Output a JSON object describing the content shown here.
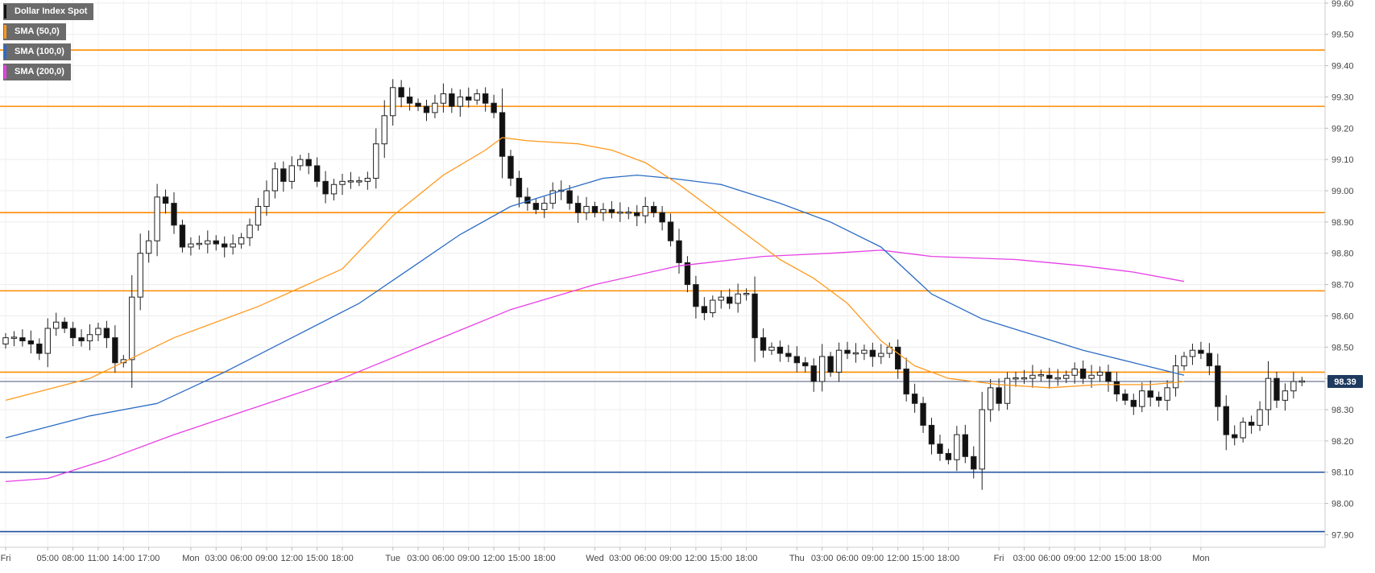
{
  "legend": [
    {
      "label": "Dollar Index Spot",
      "color": "#111111"
    },
    {
      "label": "SMA (50,0)",
      "color": "#ff9a1f"
    },
    {
      "label": "SMA (100,0)",
      "color": "#2b6cc4"
    },
    {
      "label": "SMA (200,0)",
      "color": "#e63fe6"
    }
  ],
  "price_badge": {
    "value": "98.39",
    "color": "#1f3a5f"
  },
  "chart_data": {
    "type": "candlestick",
    "title": "Dollar Index Spot",
    "ylim": [
      97.86,
      99.61
    ],
    "y_ticks": [
      "99.60",
      "99.50",
      "99.40",
      "99.30",
      "99.20",
      "99.10",
      "99.00",
      "98.90",
      "98.80",
      "98.70",
      "98.60",
      "98.50",
      "98.40",
      "98.30",
      "98.20",
      "98.10",
      "98.00",
      "97.90"
    ],
    "x_ticks": [
      {
        "label": "Fri",
        "i": 0
      },
      {
        "label": "05:00",
        "i": 5
      },
      {
        "label": "08:00",
        "i": 8
      },
      {
        "label": "11:00",
        "i": 11
      },
      {
        "label": "14:00",
        "i": 14
      },
      {
        "label": "17:00",
        "i": 17
      },
      {
        "label": "Mon",
        "i": 22
      },
      {
        "label": "03:00",
        "i": 25
      },
      {
        "label": "06:00",
        "i": 28
      },
      {
        "label": "09:00",
        "i": 31
      },
      {
        "label": "12:00",
        "i": 34
      },
      {
        "label": "15:00",
        "i": 37
      },
      {
        "label": "18:00",
        "i": 40
      },
      {
        "label": "Tue",
        "i": 46
      },
      {
        "label": "03:00",
        "i": 49
      },
      {
        "label": "06:00",
        "i": 52
      },
      {
        "label": "09:00",
        "i": 55
      },
      {
        "label": "12:00",
        "i": 58
      },
      {
        "label": "15:00",
        "i": 61
      },
      {
        "label": "18:00",
        "i": 64
      },
      {
        "label": "Wed",
        "i": 70
      },
      {
        "label": "03:00",
        "i": 73
      },
      {
        "label": "06:00",
        "i": 76
      },
      {
        "label": "09:00",
        "i": 79
      },
      {
        "label": "12:00",
        "i": 82
      },
      {
        "label": "15:00",
        "i": 85
      },
      {
        "label": "18:00",
        "i": 88
      },
      {
        "label": "Thu",
        "i": 94
      },
      {
        "label": "03:00",
        "i": 97
      },
      {
        "label": "06:00",
        "i": 100
      },
      {
        "label": "09:00",
        "i": 103
      },
      {
        "label": "12:00",
        "i": 106
      },
      {
        "label": "15:00",
        "i": 109
      },
      {
        "label": "18:00",
        "i": 112
      },
      {
        "label": "Fri",
        "i": 118
      },
      {
        "label": "03:00",
        "i": 121
      },
      {
        "label": "06:00",
        "i": 124
      },
      {
        "label": "09:00",
        "i": 127
      },
      {
        "label": "12:00",
        "i": 130
      },
      {
        "label": "15:00",
        "i": 133
      },
      {
        "label": "18:00",
        "i": 136
      },
      {
        "label": "Mon",
        "i": 142
      }
    ],
    "resistance_levels": [
      99.45,
      99.27,
      98.93,
      98.68,
      98.42
    ],
    "support_levels": [
      98.1,
      97.91
    ],
    "current_price": 98.39,
    "candles_close": [
      98.53,
      98.53,
      98.52,
      98.51,
      98.48,
      98.56,
      98.58,
      98.56,
      98.53,
      98.52,
      98.54,
      98.56,
      98.53,
      98.45,
      98.46,
      98.66,
      98.8,
      98.84,
      98.98,
      98.96,
      98.89,
      98.82,
      98.83,
      98.83,
      98.84,
      98.83,
      98.82,
      98.83,
      98.85,
      98.89,
      98.95,
      99.0,
      99.07,
      99.03,
      99.08,
      99.1,
      99.08,
      99.03,
      98.99,
      99.02,
      99.03,
      99.03,
      99.03,
      99.04,
      99.15,
      99.24,
      99.33,
      99.3,
      99.28,
      99.27,
      99.25,
      99.28,
      99.31,
      99.27,
      99.3,
      99.29,
      99.31,
      99.28,
      99.25,
      99.11,
      99.04,
      98.98,
      98.96,
      98.94,
      98.96,
      99.0,
      99.0,
      98.96,
      98.93,
      98.95,
      98.93,
      98.94,
      98.93,
      98.93,
      98.93,
      98.92,
      98.95,
      98.93,
      98.9,
      98.84,
      98.77,
      98.7,
      98.63,
      98.61,
      98.65,
      98.66,
      98.64,
      98.67,
      98.67,
      98.53,
      98.49,
      98.5,
      98.48,
      98.47,
      98.45,
      98.44,
      98.39,
      98.47,
      98.42,
      98.49,
      98.48,
      98.48,
      98.49,
      98.47,
      98.48,
      98.5,
      98.43,
      98.35,
      98.32,
      98.25,
      98.19,
      98.16,
      98.14,
      98.22,
      98.15,
      98.11,
      98.3,
      98.37,
      98.32,
      98.4,
      98.4,
      98.4,
      98.41,
      98.41,
      98.4,
      98.4,
      98.41,
      98.43,
      98.4,
      98.41,
      98.42,
      98.39,
      98.35,
      98.33,
      98.31,
      98.36,
      98.34,
      98.33,
      98.37,
      98.44,
      98.47,
      98.49,
      98.48,
      98.44,
      98.31,
      98.22,
      98.21,
      98.26,
      98.25,
      98.3,
      98.4,
      98.33,
      98.36,
      98.39,
      98.39
    ],
    "sma_50": [
      [
        0,
        98.33
      ],
      [
        10,
        98.4
      ],
      [
        20,
        98.53
      ],
      [
        30,
        98.63
      ],
      [
        40,
        98.75
      ],
      [
        46,
        98.92
      ],
      [
        52,
        99.05
      ],
      [
        57,
        99.13
      ],
      [
        59,
        99.17
      ],
      [
        62,
        99.16
      ],
      [
        68,
        99.15
      ],
      [
        72,
        99.13
      ],
      [
        76,
        99.09
      ],
      [
        80,
        99.02
      ],
      [
        84,
        98.94
      ],
      [
        88,
        98.86
      ],
      [
        92,
        98.78
      ],
      [
        96,
        98.72
      ],
      [
        100,
        98.64
      ],
      [
        104,
        98.52
      ],
      [
        108,
        98.44
      ],
      [
        112,
        98.4
      ],
      [
        118,
        98.38
      ],
      [
        124,
        98.37
      ],
      [
        130,
        98.38
      ],
      [
        136,
        98.38
      ],
      [
        140,
        98.39
      ]
    ],
    "sma_100": [
      [
        0,
        98.21
      ],
      [
        10,
        98.28
      ],
      [
        18,
        98.32
      ],
      [
        26,
        98.42
      ],
      [
        34,
        98.53
      ],
      [
        42,
        98.64
      ],
      [
        48,
        98.75
      ],
      [
        54,
        98.86
      ],
      [
        60,
        98.95
      ],
      [
        66,
        99.0
      ],
      [
        71,
        99.04
      ],
      [
        75,
        99.05
      ],
      [
        79,
        99.04
      ],
      [
        85,
        99.02
      ],
      [
        92,
        98.96
      ],
      [
        98,
        98.9
      ],
      [
        104,
        98.82
      ],
      [
        110,
        98.67
      ],
      [
        116,
        98.59
      ],
      [
        122,
        98.54
      ],
      [
        128,
        98.49
      ],
      [
        134,
        98.45
      ],
      [
        140,
        98.41
      ]
    ],
    "sma_200": [
      [
        0,
        98.07
      ],
      [
        5,
        98.08
      ],
      [
        12,
        98.14
      ],
      [
        20,
        98.22
      ],
      [
        30,
        98.31
      ],
      [
        40,
        98.4
      ],
      [
        50,
        98.51
      ],
      [
        60,
        98.62
      ],
      [
        70,
        98.7
      ],
      [
        80,
        98.76
      ],
      [
        90,
        98.79
      ],
      [
        98,
        98.8
      ],
      [
        104,
        98.81
      ],
      [
        110,
        98.79
      ],
      [
        120,
        98.78
      ],
      [
        128,
        98.76
      ],
      [
        134,
        98.74
      ],
      [
        140,
        98.71
      ]
    ]
  }
}
